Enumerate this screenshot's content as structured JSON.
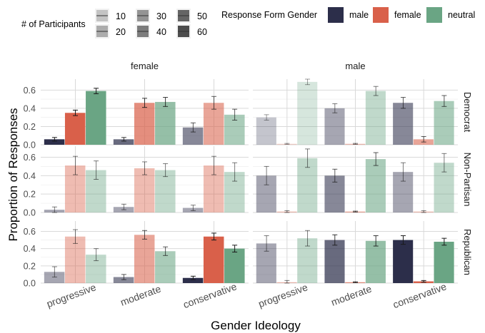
{
  "chart_data": {
    "type": "bar",
    "xlabel": "Gender Ideology",
    "ylabel": "Proportion of Responses",
    "ylim": [
      0,
      0.72
    ],
    "yticks": [
      0.0,
      0.2,
      0.4,
      0.6
    ],
    "ytick_labels": [
      "0.0",
      "0.2",
      "0.4",
      "0.6"
    ],
    "categories": [
      "progressive",
      "moderate",
      "conservative"
    ],
    "column_facets": [
      "female",
      "male"
    ],
    "row_facets": [
      "Democrat",
      "Non-Partisan",
      "Republican"
    ],
    "grid": true,
    "legend_placement": "top",
    "size_legend": {
      "title": "# of Participants",
      "values": [
        "10",
        "20",
        "30",
        "40",
        "50",
        "60"
      ]
    },
    "series_legend": {
      "title": "Response Form Gender"
    },
    "series": [
      {
        "name": "male",
        "color": "#2c2e4a"
      },
      {
        "name": "female",
        "color": "#d9604a"
      },
      {
        "name": "neutral",
        "color": "#6aa584"
      }
    ],
    "panels": [
      {
        "col": "female",
        "row": "Democrat",
        "n": [
          60,
          40,
          30
        ],
        "values": [
          [
            0.06,
            0.35,
            0.59
          ],
          [
            0.06,
            0.46,
            0.47
          ],
          [
            0.19,
            0.46,
            0.33
          ]
        ],
        "errors": [
          [
            0.02,
            0.03,
            0.03
          ],
          [
            0.02,
            0.05,
            0.05
          ],
          [
            0.05,
            0.07,
            0.06
          ]
        ]
      },
      {
        "col": "male",
        "row": "Democrat",
        "n": [
          10,
          20,
          30
        ],
        "values": [
          [
            0.3,
            0.01,
            0.69
          ],
          [
            0.4,
            0.01,
            0.59
          ],
          [
            0.46,
            0.06,
            0.48
          ]
        ],
        "errors": [
          [
            0.03,
            0.005,
            0.03
          ],
          [
            0.05,
            0.005,
            0.05
          ],
          [
            0.06,
            0.03,
            0.06
          ]
        ]
      },
      {
        "col": "female",
        "row": "Non-Partisan",
        "n": [
          20,
          20,
          20
        ],
        "values": [
          [
            0.03,
            0.51,
            0.46
          ],
          [
            0.06,
            0.48,
            0.46
          ],
          [
            0.05,
            0.51,
            0.44
          ]
        ],
        "errors": [
          [
            0.03,
            0.1,
            0.1
          ],
          [
            0.03,
            0.07,
            0.07
          ],
          [
            0.03,
            0.1,
            0.1
          ]
        ]
      },
      {
        "col": "male",
        "row": "Non-Partisan",
        "n": [
          20,
          30,
          20
        ],
        "values": [
          [
            0.4,
            0.01,
            0.59
          ],
          [
            0.4,
            0.01,
            0.58
          ],
          [
            0.44,
            0.01,
            0.54
          ]
        ],
        "errors": [
          [
            0.1,
            0.01,
            0.1
          ],
          [
            0.07,
            0.005,
            0.07
          ],
          [
            0.1,
            0.01,
            0.1
          ]
        ]
      },
      {
        "col": "female",
        "row": "Republican",
        "n": [
          20,
          30,
          60
        ],
        "values": [
          [
            0.13,
            0.54,
            0.33
          ],
          [
            0.07,
            0.56,
            0.37
          ],
          [
            0.06,
            0.54,
            0.4
          ]
        ],
        "errors": [
          [
            0.06,
            0.08,
            0.07
          ],
          [
            0.03,
            0.05,
            0.05
          ],
          [
            0.02,
            0.04,
            0.04
          ]
        ]
      },
      {
        "col": "male",
        "row": "Republican",
        "n": [
          20,
          40,
          60
        ],
        "values": [
          [
            0.46,
            0.01,
            0.52
          ],
          [
            0.5,
            0.01,
            0.49
          ],
          [
            0.5,
            0.02,
            0.48
          ]
        ],
        "errors": [
          [
            0.09,
            0.02,
            0.09
          ],
          [
            0.06,
            0.005,
            0.06
          ],
          [
            0.05,
            0.01,
            0.04
          ]
        ]
      }
    ]
  }
}
